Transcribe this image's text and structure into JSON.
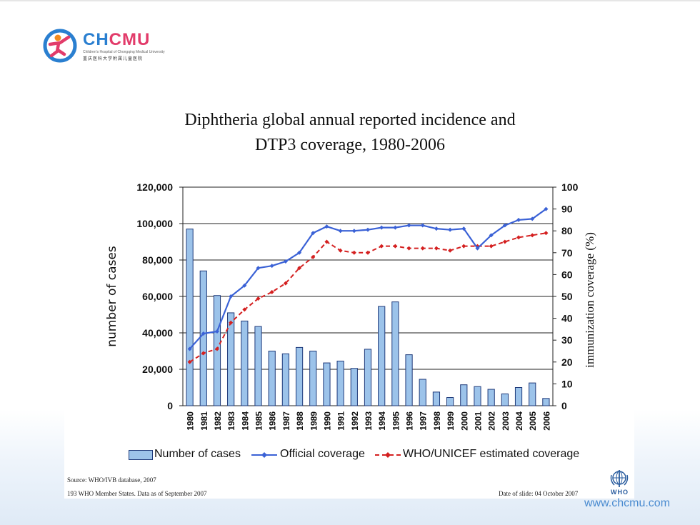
{
  "branding": {
    "logo_name": "CHCMU",
    "logo_name_a": "CH",
    "logo_name_b": "CMU",
    "logo_sub_en": "Children's Hospital of Chongqing Medical University",
    "logo_sub_cn": "重庆医科大学附属儿童医院",
    "website": "www.chcmu.com",
    "who_label": "WHO"
  },
  "colors": {
    "bars": "#9cc3ea",
    "bar_border": "#1f3a7a",
    "official_line": "#3b62d6",
    "estimated_line": "#d42020",
    "brand_blue": "#2a7fd0",
    "brand_pink": "#e23b6a"
  },
  "footer": {
    "source": "Source: WHO/IVB database, 2007",
    "members": "193 WHO Member States. Data as of September 2007",
    "slide_date": "Date of slide: 04 October 2007"
  },
  "chart_data": {
    "type": "bar",
    "title": "Diphtheria global annual reported incidence and DTP3 coverage, 1980-2006",
    "title_lines": [
      "Diphtheria global annual reported incidence and",
      "DTP3 coverage, 1980-2006"
    ],
    "ylabel": "number of cases",
    "y2label": "immunization coverage (%)",
    "ylim": [
      0,
      120000
    ],
    "y2lim": [
      0,
      100
    ],
    "yticks": [
      "120,000",
      "100,000",
      "80,000",
      "60,000",
      "40,000",
      "20,000",
      "0"
    ],
    "y2ticks": [
      "100",
      "90",
      "80",
      "70",
      "60",
      "50",
      "40",
      "30",
      "20",
      "10",
      "0"
    ],
    "grid": "horizontal major lines on left axis",
    "legend_position": "bottom",
    "categories": [
      "1980",
      "1981",
      "1982",
      "1983",
      "1984",
      "1985",
      "1986",
      "1987",
      "1988",
      "1989",
      "1990",
      "1991",
      "1992",
      "1993",
      "1994",
      "1995",
      "1996",
      "1997",
      "1998",
      "1999",
      "2000",
      "2001",
      "2002",
      "2003",
      "2004",
      "2005",
      "2006"
    ],
    "series": [
      {
        "name": "Number of cases",
        "type": "bar",
        "axis": "left",
        "values": [
          97000,
          74000,
          60500,
          51000,
          46500,
          43500,
          30000,
          28500,
          32000,
          30000,
          23500,
          24500,
          20500,
          31000,
          54500,
          57000,
          28000,
          14500,
          7500,
          4500,
          11500,
          10500,
          9000,
          6500,
          10000,
          12500,
          4000
        ]
      },
      {
        "name": "Official coverage",
        "type": "line",
        "axis": "right",
        "values": [
          26,
          33,
          34,
          50,
          55,
          63,
          64,
          66,
          70,
          79,
          82,
          80,
          80,
          80.5,
          81.5,
          81.5,
          82.5,
          82.5,
          81,
          80.5,
          81,
          72,
          78,
          82.5,
          85,
          85.5,
          90
        ]
      },
      {
        "name": "WHO/UNICEF estimated coverage",
        "type": "line",
        "style": "dashed",
        "axis": "right",
        "values": [
          20,
          24,
          26,
          38,
          44,
          49,
          52,
          56,
          63,
          68,
          75,
          71,
          70,
          70,
          73,
          73,
          72,
          72,
          72,
          71,
          73,
          73,
          73,
          75,
          77,
          78,
          79
        ]
      }
    ]
  }
}
